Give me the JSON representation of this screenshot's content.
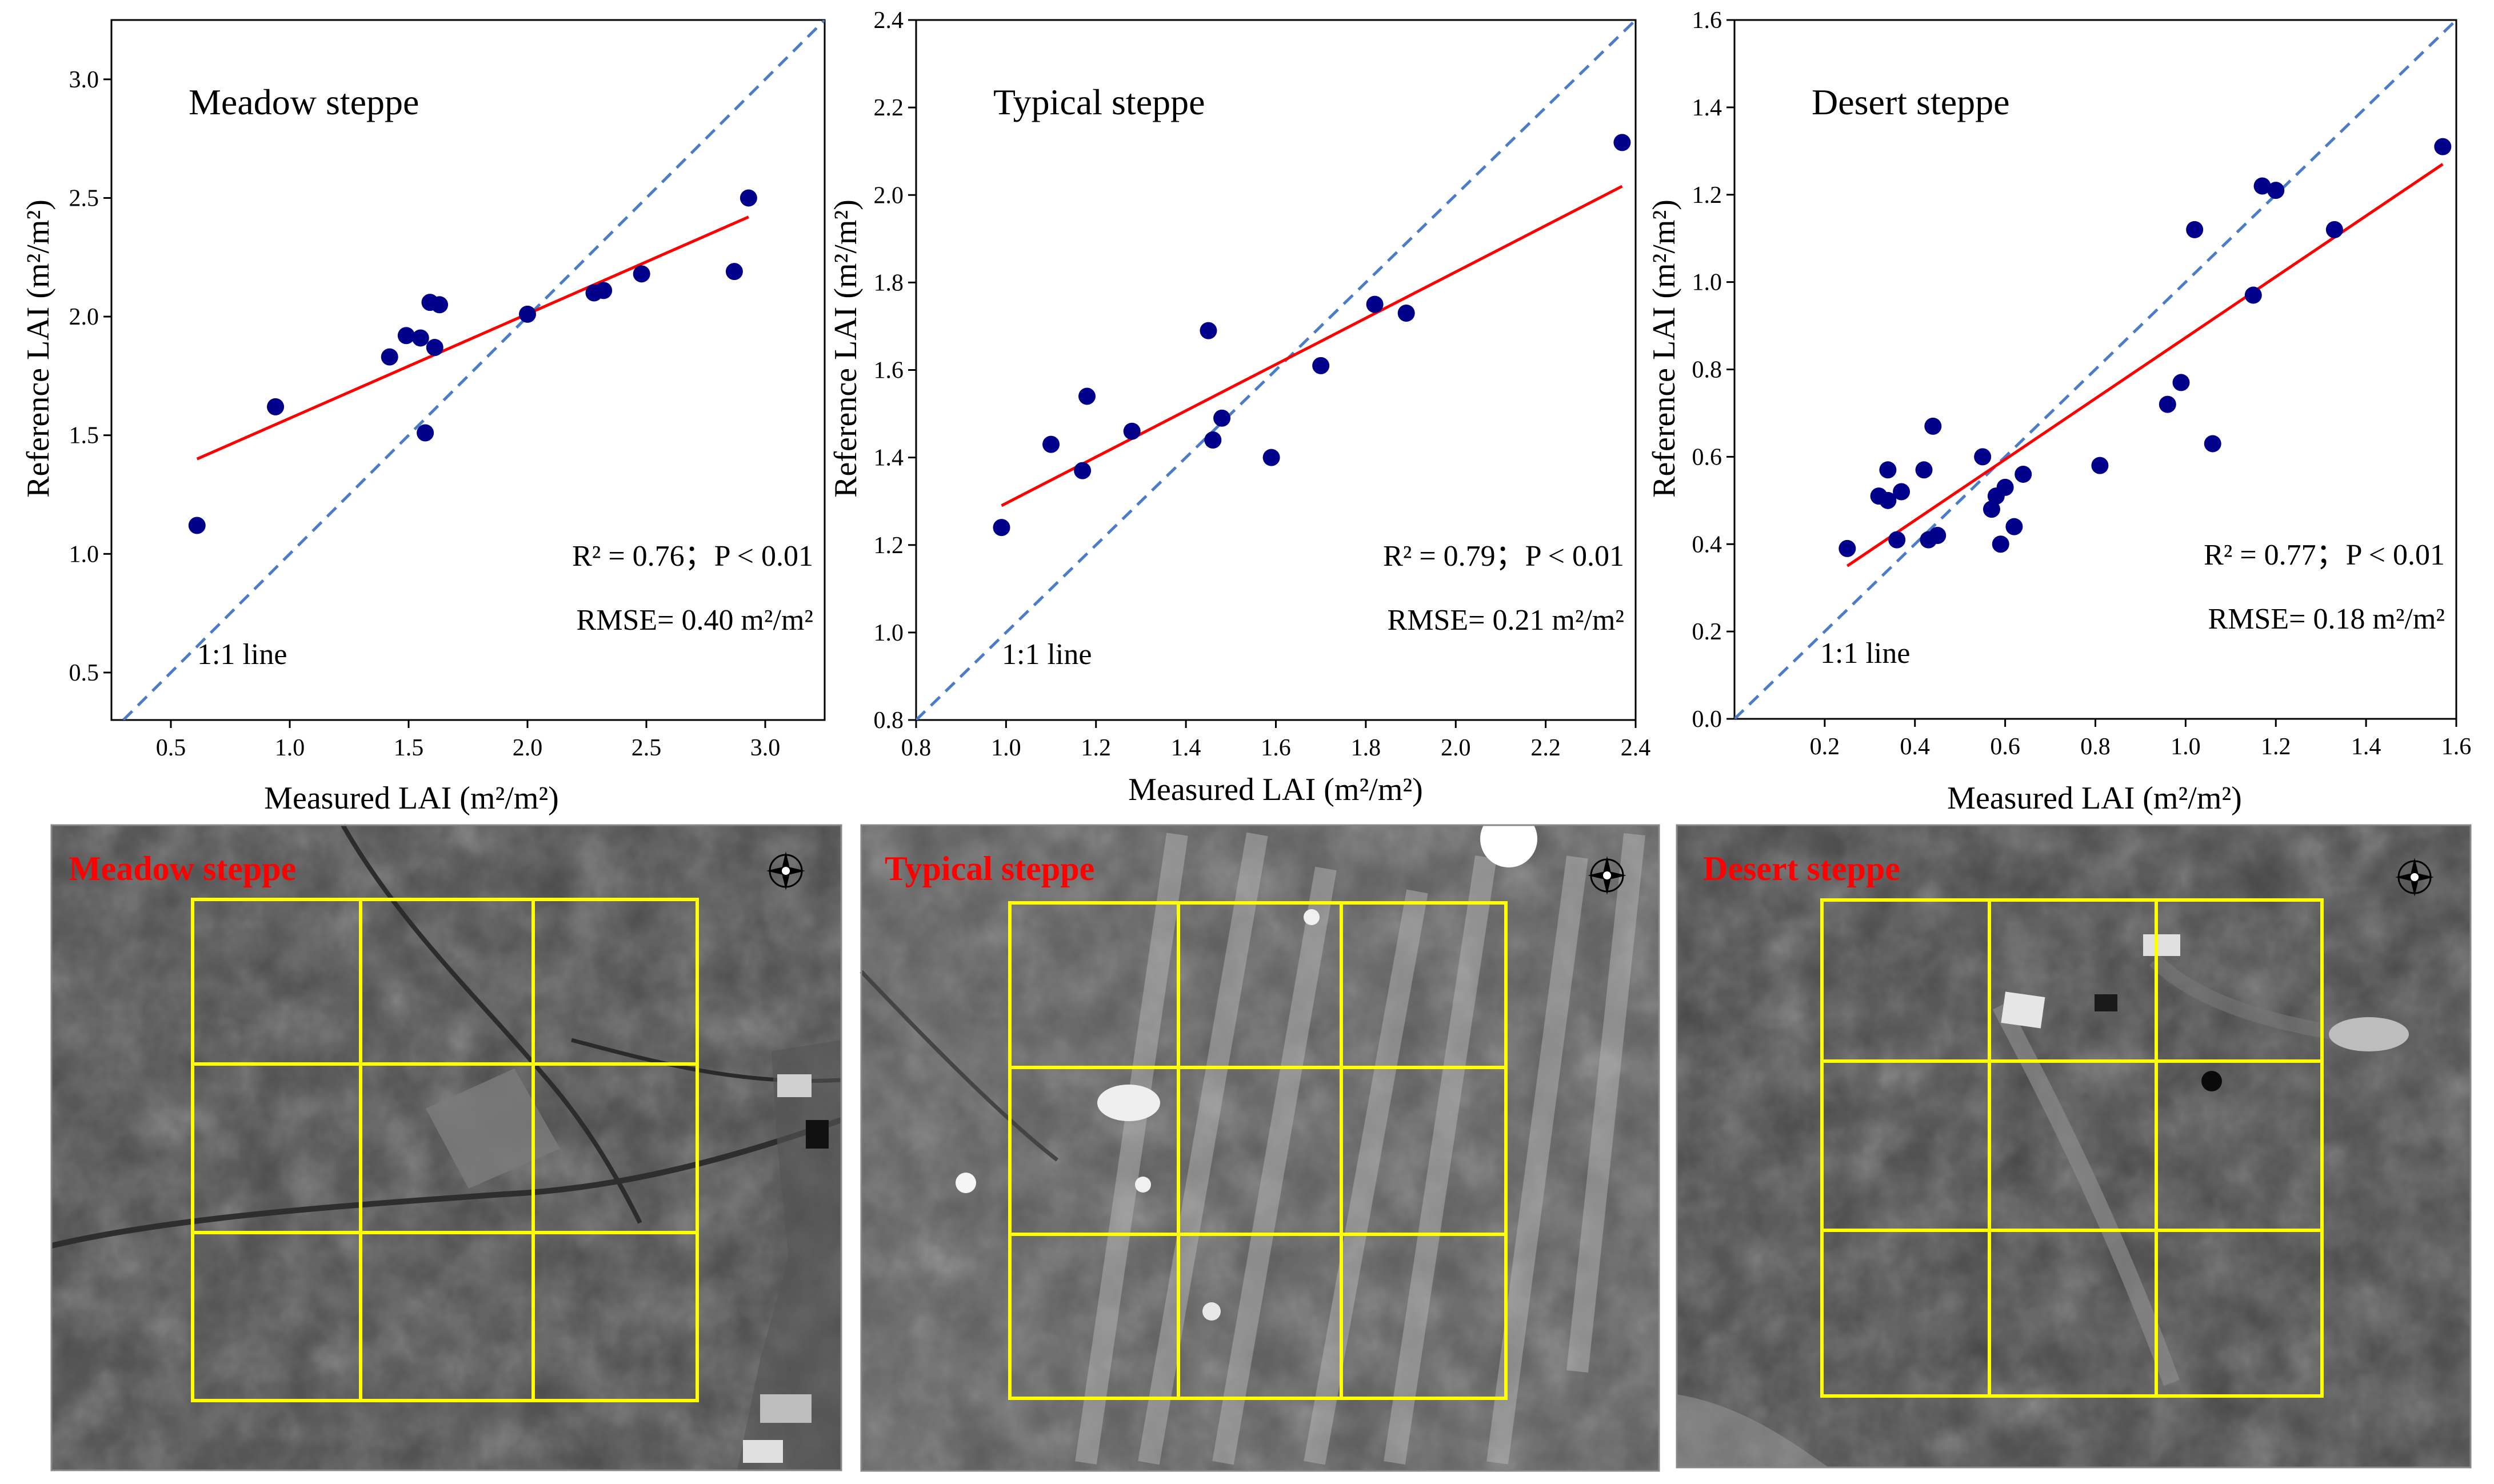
{
  "chart_data": [
    {
      "type": "scatter",
      "title": "Meadow steppe",
      "xlabel": "Measured LAI (m²/m²)",
      "ylabel": "Reference LAI (m²/m²)",
      "xlim": [
        0.25,
        3.25
      ],
      "ylim": [
        0.3,
        3.25
      ],
      "xticks": [
        "0.5",
        "1.0",
        "1.5",
        "2.0",
        "2.5",
        "3.0"
      ],
      "yticks": [
        "0.5",
        "1.0",
        "1.5",
        "2.0",
        "2.5",
        "3.0"
      ],
      "x": [
        0.61,
        0.94,
        1.42,
        1.49,
        1.55,
        1.57,
        1.59,
        1.61,
        1.63,
        2.0,
        2.28,
        2.32,
        2.48,
        2.87,
        2.93
      ],
      "y": [
        1.12,
        1.62,
        1.83,
        1.92,
        1.91,
        1.51,
        2.06,
        1.87,
        2.05,
        2.01,
        2.1,
        2.11,
        2.18,
        2.19,
        2.5
      ],
      "fit": [
        [
          0.61,
          1.4
        ],
        [
          2.93,
          2.42
        ]
      ],
      "identity_label": "1:1 line",
      "stats_line1": "R² = 0.76；P < 0.01",
      "stats_line2": "RMSE= 0.40 m²/m²",
      "grid": false
    },
    {
      "type": "scatter",
      "title": "Typical steppe",
      "xlabel": "Measured LAI (m²/m²)",
      "ylabel": "Reference LAI (m²/m²)",
      "xlim": [
        0.8,
        2.4
      ],
      "ylim": [
        0.8,
        2.4
      ],
      "xticks": [
        "0.8",
        "1.0",
        "1.2",
        "1.4",
        "1.6",
        "1.8",
        "2.0",
        "2.2",
        "2.4"
      ],
      "yticks": [
        "0.8",
        "1.0",
        "1.2",
        "1.4",
        "1.6",
        "1.8",
        "2.0",
        "2.2",
        "2.4"
      ],
      "x": [
        0.99,
        1.1,
        1.17,
        1.18,
        1.28,
        1.45,
        1.46,
        1.48,
        1.59,
        1.7,
        1.82,
        1.89,
        2.37
      ],
      "y": [
        1.24,
        1.43,
        1.37,
        1.54,
        1.46,
        1.69,
        1.44,
        1.49,
        1.4,
        1.61,
        1.75,
        1.73,
        2.12
      ],
      "fit": [
        [
          0.99,
          1.29
        ],
        [
          2.37,
          2.02
        ]
      ],
      "identity_label": "1:1 line",
      "stats_line1": "R² = 0.79；P < 0.01",
      "stats_line2": "RMSE= 0.21 m²/m²",
      "grid": false
    },
    {
      "type": "scatter",
      "title": "Desert steppe",
      "xlabel": "Measured LAI (m²/m²)",
      "ylabel": "Reference LAI (m²/m²)",
      "xlim": [
        0.0,
        1.6
      ],
      "ylim": [
        0.0,
        1.6
      ],
      "xticks": [
        "0.2",
        "0.4",
        "0.6",
        "0.8",
        "1.0",
        "1.2",
        "1.4",
        "1.6"
      ],
      "yticks": [
        "0.0",
        "0.2",
        "0.4",
        "0.6",
        "0.8",
        "1.0",
        "1.2",
        "1.4",
        "1.6"
      ],
      "x": [
        0.25,
        0.32,
        0.34,
        0.34,
        0.36,
        0.37,
        0.42,
        0.43,
        0.44,
        0.45,
        0.55,
        0.57,
        0.58,
        0.59,
        0.6,
        0.62,
        0.64,
        0.81,
        0.96,
        0.99,
        1.02,
        1.06,
        1.15,
        1.17,
        1.2,
        1.33,
        1.57
      ],
      "y": [
        0.39,
        0.51,
        0.5,
        0.57,
        0.41,
        0.52,
        0.57,
        0.41,
        0.67,
        0.42,
        0.6,
        0.48,
        0.51,
        0.4,
        0.53,
        0.44,
        0.56,
        0.58,
        0.72,
        0.77,
        1.12,
        0.63,
        0.97,
        1.22,
        1.21,
        1.12,
        1.31
      ],
      "fit": [
        [
          0.25,
          0.35
        ],
        [
          1.57,
          1.27
        ]
      ],
      "identity_label": "1:1 line",
      "stats_line1": "R² = 0.77；P < 0.01",
      "stats_line2": "RMSE= 0.18 m²/m²",
      "grid": false
    }
  ],
  "images": [
    {
      "label": "Meadow steppe"
    },
    {
      "label": "Typical steppe"
    },
    {
      "label": "Desert steppe"
    }
  ],
  "colors": {
    "points": "#00008b",
    "fit": "#ff0000",
    "identity": "#4a7cc7",
    "grid_frame": "#ffff00",
    "label": "#ff0000"
  },
  "icons": {
    "compass": "north-arrow-compass-icon"
  }
}
